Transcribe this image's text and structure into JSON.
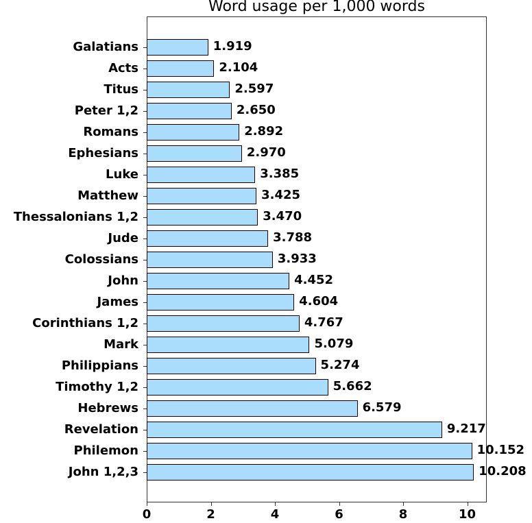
{
  "chart_data": {
    "type": "bar",
    "orientation": "horizontal",
    "title": "Word usage per 1,000 words",
    "xlabel": "",
    "ylabel": "",
    "xlim": [
      0,
      10.6
    ],
    "x_ticks": [
      0,
      2,
      4,
      6,
      8,
      10
    ],
    "grid": false,
    "legend": null,
    "bar_color": "#aadcfc",
    "categories": [
      "Galatians",
      "Acts",
      "Titus",
      "Peter 1,2",
      "Romans",
      "Ephesians",
      "Luke",
      "Matthew",
      "Thessalonians 1,2",
      "Jude",
      "Colossians",
      "John",
      "James",
      "Corinthians 1,2",
      "Mark",
      "Philippians",
      "Timothy 1,2",
      "Hebrews",
      "Revelation",
      "Philemon",
      "John 1,2,3"
    ],
    "values": [
      1.919,
      2.104,
      2.597,
      2.65,
      2.892,
      2.97,
      3.385,
      3.425,
      3.47,
      3.788,
      3.933,
      4.452,
      4.604,
      4.767,
      5.079,
      5.274,
      5.662,
      6.579,
      9.217,
      10.152,
      10.208
    ],
    "value_labels": [
      "1.919",
      "2.104",
      "2.597",
      "2.650",
      "2.892",
      "2.970",
      "3.385",
      "3.425",
      "3.470",
      "3.788",
      "3.933",
      "4.452",
      "4.604",
      "4.767",
      "5.079",
      "5.274",
      "5.662",
      "6.579",
      "9.217",
      "10.152",
      "10.208"
    ]
  }
}
